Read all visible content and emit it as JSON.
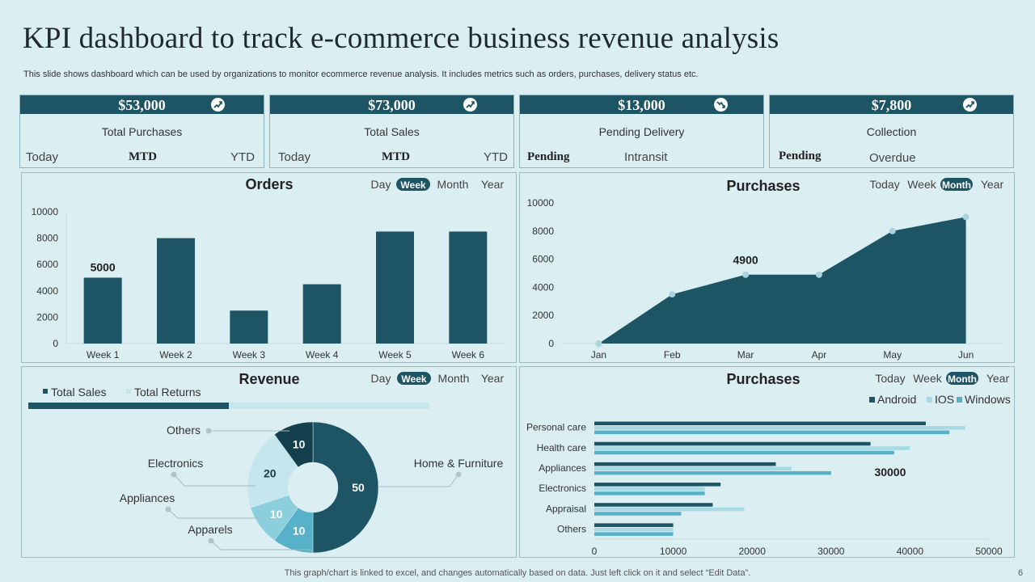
{
  "title": "KPI dashboard to track e-commerce business revenue analysis",
  "subtitle": "This slide shows dashboard which can be used by organizations to monitor ecommerce revenue analysis. It includes metrics such as orders, purchases, delivery status etc.",
  "kpis": [
    {
      "value": "$53,000",
      "label": "Total Purchases",
      "left": "Today",
      "mid": "MTD",
      "right": "YTD",
      "icon": "trend-up-icon"
    },
    {
      "value": "$73,000",
      "label": "Total Sales",
      "left": "Today",
      "mid": "MTD",
      "right": "YTD",
      "icon": "trend-up-icon"
    },
    {
      "value": "$13,000",
      "label": "Pending Delivery",
      "left": "Pending",
      "mid": "Intransit",
      "icon": "trend-down-icon"
    },
    {
      "value": "$7,800",
      "label": "Collection",
      "left": "Pending",
      "mid": "Overdue",
      "icon": "trend-up-icon"
    }
  ],
  "colors": {
    "dark": "#1e5565",
    "mid": "#57b2c9",
    "light": "#a6d9e3",
    "lighter": "#c5e6ec"
  },
  "footer": "This graph/chart is linked to excel,  and changes automatically based on data. Just left click on it and select “Edit Data”.",
  "page_number": "6",
  "chart_data": [
    {
      "id": "orders",
      "type": "bar",
      "title": "Orders",
      "filters": [
        "Day",
        "Week",
        "Month",
        "Year"
      ],
      "active_filter": "Week",
      "categories": [
        "Week 1",
        "Week 2",
        "Week 3",
        "Week 4",
        "Week 5",
        "Week 6"
      ],
      "values": [
        5000,
        8000,
        2500,
        4500,
        8500,
        8500
      ],
      "ylim": [
        0,
        10000
      ],
      "yticks": [
        0,
        2000,
        4000,
        6000,
        8000,
        10000
      ],
      "annotations": [
        {
          "category": "Week 1",
          "text": "5000"
        }
      ]
    },
    {
      "id": "purchases_area",
      "type": "area",
      "title": "Purchases",
      "filters": [
        "Today",
        "Week",
        "Month",
        "Year"
      ],
      "active_filter": "Month",
      "categories": [
        "Jan",
        "Feb",
        "Mar",
        "Apr",
        "May",
        "Jun"
      ],
      "values": [
        0,
        3500,
        4900,
        4900,
        8000,
        9000
      ],
      "ylim": [
        0,
        10000
      ],
      "yticks": [
        0,
        2000,
        4000,
        6000,
        8000,
        10000
      ],
      "annotations": [
        {
          "category": "Mar",
          "text": "4900"
        }
      ]
    },
    {
      "id": "revenue",
      "type": "pie",
      "title": "Revenue",
      "filters": [
        "Day",
        "Week",
        "Month",
        "Year"
      ],
      "active_filter": "Week",
      "legend": [
        "Total Sales",
        "Total Returns"
      ],
      "progress": {
        "total_sales_fraction": 0.5
      },
      "slices": [
        {
          "label": "Home & Furniture",
          "value": 50
        },
        {
          "label": "Apparels",
          "value": 10
        },
        {
          "label": "Appliances",
          "value": 10
        },
        {
          "label": "Electronics",
          "value": 20
        },
        {
          "label": "Others",
          "value": 10
        }
      ]
    },
    {
      "id": "purchases_bar",
      "type": "bar",
      "orientation": "horizontal",
      "title": "Purchases",
      "filters": [
        "Today",
        "Week",
        "Month",
        "Year"
      ],
      "active_filter": "Month",
      "categories": [
        "Personal care",
        "Health care",
        "Appliances",
        "Electronics",
        "Appraisal",
        "Others"
      ],
      "series": [
        {
          "name": "Android",
          "values": [
            42000,
            35000,
            23000,
            16000,
            15000,
            10000
          ]
        },
        {
          "name": "IOS",
          "values": [
            47000,
            40000,
            25000,
            14000,
            19000,
            10000
          ]
        },
        {
          "name": "Windows",
          "values": [
            45000,
            38000,
            30000,
            14000,
            11000,
            10000
          ]
        }
      ],
      "xlim": [
        0,
        50000
      ],
      "xticks": [
        0,
        10000,
        20000,
        30000,
        40000,
        50000
      ],
      "annotations": [
        {
          "category": "Appliances",
          "text": "30000"
        }
      ]
    }
  ]
}
